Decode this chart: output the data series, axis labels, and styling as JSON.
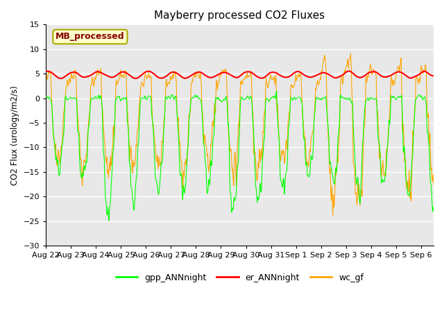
{
  "title": "Mayberry processed CO2 Fluxes",
  "ylabel": "CO2 Flux (urology/m2/s)",
  "ylim": [
    -30,
    15
  ],
  "yticks": [
    -30,
    -25,
    -20,
    -15,
    -10,
    -5,
    0,
    5,
    10,
    15
  ],
  "legend_label": "MB_processed",
  "legend_box_facecolor": "#ffffcc",
  "legend_box_edgecolor": "#aaaa00",
  "legend_text_color": "#880000",
  "bg_color": "#ffffff",
  "plot_bg_color": "#e8e8e8",
  "grid_color": "#ffffff",
  "gpp_color": "#00ff00",
  "er_color": "#ff0000",
  "wc_color": "#ffa500",
  "n_days": 15.5,
  "points_per_day": 48,
  "date_labels": [
    "Aug 22",
    "Aug 23",
    "Aug 24",
    "Aug 25",
    "Aug 26",
    "Aug 27",
    "Aug 28",
    "Aug 29",
    "Aug 30",
    "Aug 31",
    "Sep 1",
    "Sep 2",
    "Sep 3",
    "Sep 4",
    "Sep 5",
    "Sep 6"
  ]
}
